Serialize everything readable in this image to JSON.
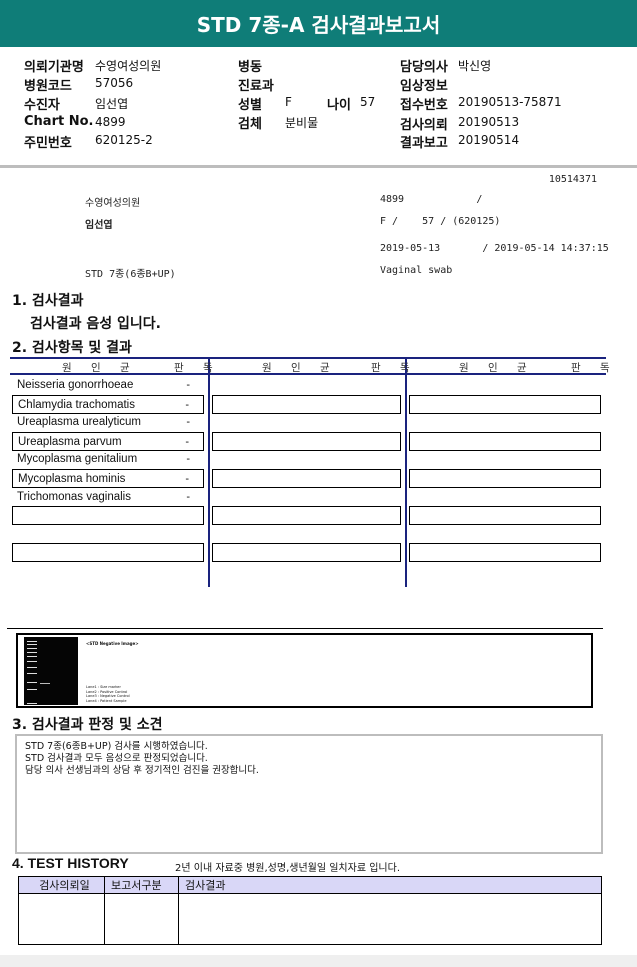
{
  "title": "STD 7종-A 검사결과보고서",
  "info": {
    "hospital_label": "의뢰기관명",
    "hospital": "수영여성의원",
    "code_label": "병원코드",
    "code": "57056",
    "patient_label": "수진자",
    "patient": "임선엽",
    "chart_label": "Chart No.",
    "chart": "4899",
    "rrn_label": "주민번호",
    "rrn": "620125-2",
    "ward_label": "병동",
    "dept_label": "진료과",
    "sex_label": "성별",
    "sex": "F",
    "age_label": "나이",
    "age": "57",
    "specimen_label": "검체",
    "specimen": "분비물",
    "doctor_label": "담당의사",
    "doctor": "박신영",
    "clinical_label": "임상정보",
    "receipt_label": "접수번호",
    "receipt": "20190513-75871",
    "request_label": "검사의뢰",
    "request": "20190513",
    "report_label": "결과보고",
    "report": "20190514"
  },
  "sub": {
    "id": "10514371",
    "hospital": "수영여성의원",
    "patient": "임선엽",
    "chart": "4899            /",
    "sexage": "F /    57 / (620125)",
    "dates": "2019-05-13       / 2019-05-14 14:37:15",
    "test": "STD 7종(6종B+UP)",
    "specimen": "Vaginal swab"
  },
  "s1": {
    "title": "1. 검사결과",
    "result": "검사결과 음성 입니다."
  },
  "s2": {
    "title": "2. 검사항목 및 결과",
    "col_pathogen": "원 인 균",
    "col_reading": "판 독",
    "items": [
      {
        "name": "Neisseria gonorrhoeae",
        "result": "-"
      },
      {
        "name": "Chlamydia trachomatis",
        "result": "-"
      },
      {
        "name": "Ureaplasma urealyticum",
        "result": "-"
      },
      {
        "name": "Ureaplasma parvum",
        "result": "-"
      },
      {
        "name": "Mycoplasma genitalium",
        "result": "-"
      },
      {
        "name": "Mycoplasma hominis",
        "result": "-"
      },
      {
        "name": "Trichomonas vaginalis",
        "result": "-"
      }
    ]
  },
  "gel": {
    "caption": "<STD Negative Image>",
    "legend": [
      "Lane1 : Size marker",
      "Lane2 : Positive Control",
      "Lane3 : Negative Control",
      "Lane4 : Patient Sample"
    ]
  },
  "s3": {
    "title": "3. 검사결과 판정 및 소견",
    "lines": [
      "STD 7종(6종B+UP) 검사를 시행하였습니다.",
      "STD 검사결과 모두 음성으로 판정되었습니다.",
      "담당 의사 선생님과의 상담 후 정기적인 검진을 권장합니다."
    ]
  },
  "s4": {
    "title": "4. TEST HISTORY",
    "note": "2년 이내 자료중 병원,성명,생년월일 일치자료 입니다.",
    "headers": [
      "검사의뢰일",
      "보고서구분",
      "검사결과"
    ]
  },
  "colors": {
    "header": "#0f7d78",
    "navy": "#1a237e",
    "history_header": "#d9d7f7"
  }
}
